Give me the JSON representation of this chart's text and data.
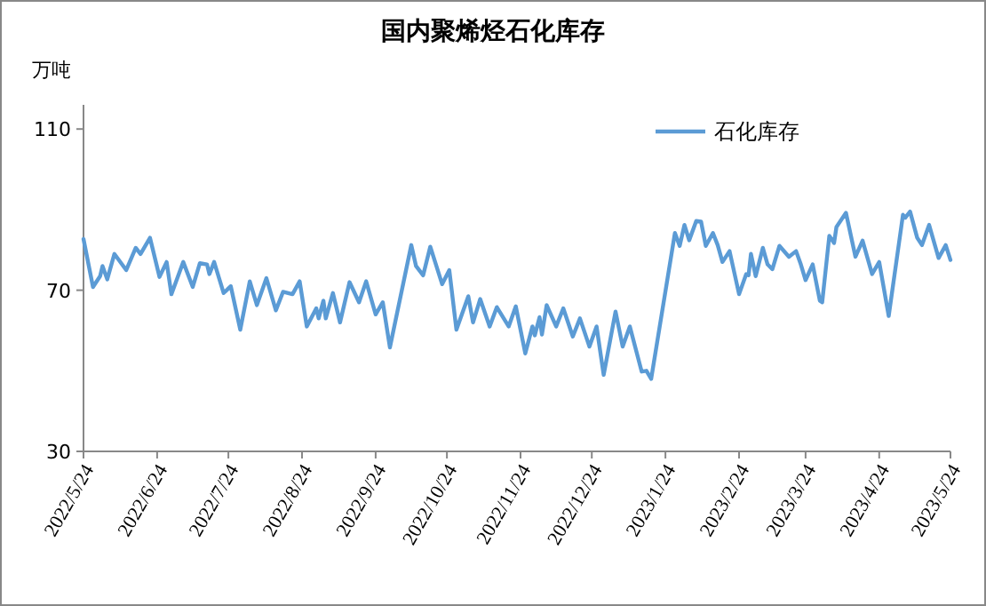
{
  "chart_data": {
    "type": "line",
    "title": "国内聚烯烃石化库存",
    "ylabel": "万吨",
    "legend": "top right",
    "grid": false,
    "xlim": [
      "2022-05-24",
      "2023-05-24"
    ],
    "xticks": [
      {
        "value": "2022-05-24",
        "label": "2022/5/24"
      },
      {
        "value": "2022-06-24",
        "label": "2022/6/24"
      },
      {
        "value": "2022-07-24",
        "label": "2022/7/24"
      },
      {
        "value": "2022-08-24",
        "label": "2022/8/24"
      },
      {
        "value": "2022-09-24",
        "label": "2022/9/24"
      },
      {
        "value": "2022-10-24",
        "label": "2022/10/24"
      },
      {
        "value": "2022-11-24",
        "label": "2022/11/24"
      },
      {
        "value": "2022-12-24",
        "label": "2022/12/24"
      },
      {
        "value": "2023-01-24",
        "label": "2023/1/24"
      },
      {
        "value": "2023-02-24",
        "label": "2023/2/24"
      },
      {
        "value": "2023-03-24",
        "label": "2023/3/24"
      },
      {
        "value": "2023-04-24",
        "label": "2023/4/24"
      },
      {
        "value": "2023-05-24",
        "label": "2023/5/24"
      }
    ],
    "ylim": [
      30,
      116
    ],
    "yticks": [
      30,
      70,
      110
    ],
    "series": [
      {
        "name": "石化库存",
        "color": "#5b9bd5",
        "x": [
          "2022-05-24",
          "2022-05-28",
          "2022-05-31",
          "2022-06-01",
          "2022-06-03",
          "2022-06-06",
          "2022-06-11",
          "2022-06-15",
          "2022-06-17",
          "2022-06-21",
          "2022-06-25",
          "2022-06-28",
          "2022-06-30",
          "2022-07-05",
          "2022-07-09",
          "2022-07-12",
          "2022-07-15",
          "2022-07-16",
          "2022-07-18",
          "2022-07-22",
          "2022-07-25",
          "2022-07-29",
          "2022-08-02",
          "2022-08-05",
          "2022-08-09",
          "2022-08-13",
          "2022-08-16",
          "2022-08-20",
          "2022-08-23",
          "2022-08-26",
          "2022-08-30",
          "2022-08-31",
          "2022-09-02",
          "2022-09-03",
          "2022-09-06",
          "2022-09-09",
          "2022-09-13",
          "2022-09-17",
          "2022-09-20",
          "2022-09-24",
          "2022-09-27",
          "2022-09-30",
          "2022-10-09",
          "2022-10-11",
          "2022-10-14",
          "2022-10-17",
          "2022-10-22",
          "2022-10-25",
          "2022-10-28",
          "2022-11-02",
          "2022-11-04",
          "2022-11-07",
          "2022-11-11",
          "2022-11-14",
          "2022-11-19",
          "2022-11-22",
          "2022-11-26",
          "2022-11-29",
          "2022-11-30",
          "2022-12-02",
          "2022-12-03",
          "2022-12-05",
          "2022-12-09",
          "2022-12-12",
          "2022-12-16",
          "2022-12-19",
          "2022-12-23",
          "2022-12-26",
          "2022-12-29",
          "2023-01-03",
          "2023-01-06",
          "2023-01-09",
          "2023-01-14",
          "2023-01-16",
          "2023-01-18",
          "2023-01-28",
          "2023-01-30",
          "2023-02-01",
          "2023-02-03",
          "2023-02-06",
          "2023-02-08",
          "2023-02-10",
          "2023-02-13",
          "2023-02-15",
          "2023-02-17",
          "2023-02-20",
          "2023-02-24",
          "2023-02-27",
          "2023-02-28",
          "2023-03-01",
          "2023-03-03",
          "2023-03-06",
          "2023-03-08",
          "2023-03-10",
          "2023-03-13",
          "2023-03-17",
          "2023-03-20",
          "2023-03-22",
          "2023-03-24",
          "2023-03-27",
          "2023-03-30",
          "2023-03-31",
          "2023-04-03",
          "2023-04-05",
          "2023-04-06",
          "2023-04-10",
          "2023-04-14",
          "2023-04-17",
          "2023-04-21",
          "2023-04-24",
          "2023-04-28",
          "2023-05-04",
          "2023-05-05",
          "2023-05-07",
          "2023-05-10",
          "2023-05-12",
          "2023-05-15",
          "2023-05-19",
          "2023-05-22",
          "2023-05-24"
        ],
        "values": [
          82.7,
          70.8,
          73.5,
          76,
          72.7,
          79,
          75,
          80.5,
          79,
          83,
          73.3,
          77,
          69,
          77,
          70.8,
          76.7,
          76.4,
          74,
          77,
          69.3,
          71,
          60.2,
          72.2,
          66.3,
          73,
          65,
          69.6,
          69,
          72.2,
          61,
          65.5,
          63,
          67.4,
          63,
          69.3,
          62,
          72,
          67,
          72.2,
          64,
          67,
          55.8,
          81.2,
          76,
          73.7,
          80.8,
          71.5,
          75,
          60.2,
          68.5,
          62,
          67.8,
          61,
          65.8,
          61,
          66,
          54.3,
          61,
          58.8,
          63.3,
          59,
          66.3,
          61,
          65.5,
          58.5,
          63,
          56,
          61,
          49,
          64.7,
          56,
          61,
          49.8,
          50,
          48,
          84.2,
          81,
          86.2,
          82.4,
          87.2,
          87,
          81,
          84.2,
          81.2,
          77,
          79.7,
          69,
          74,
          73.7,
          79,
          73.5,
          80.5,
          76.4,
          75.2,
          81,
          78.3,
          79.7,
          76.4,
          72.5,
          76.4,
          67.4,
          67,
          83.5,
          81.7,
          85.7,
          89.2,
          78.3,
          82.3,
          74,
          77,
          63.6,
          88.7,
          88,
          89.5,
          83,
          81.2,
          86.2,
          78,
          81.2,
          77.5
        ]
      }
    ]
  }
}
